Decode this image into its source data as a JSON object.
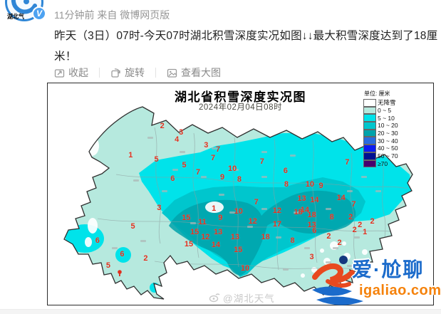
{
  "profile": {
    "avatar_text": "湖北气",
    "verified_label": "V"
  },
  "header": {
    "meta": "11分钟前 来自 微博网页版"
  },
  "post": {
    "text": "昨天（3日）07时-今天07时湖北积雪深度实况如图↓↓最大积雪深度达到了18厘米！"
  },
  "toolbar": {
    "collapse": "收起",
    "rotate": "旋转",
    "view_large": "查看大图"
  },
  "map": {
    "title": "湖北省积雪深度实况图",
    "datetime": "2024年02月04日08时",
    "unit_label": "单位: 厘米",
    "watermark": "@湖北天气",
    "value_color": "#e0301e",
    "legend": [
      {
        "label": "无降雪",
        "color": "#ffffff"
      },
      {
        "label": "0 ~ 5",
        "color": "#b6e9de"
      },
      {
        "label": "5 ~ 10",
        "color": "#00e3ea"
      },
      {
        "label": "10 ~ 20",
        "color": "#00c6cd"
      },
      {
        "label": "20 ~ 30",
        "color": "#00a2aa"
      },
      {
        "label": "30 ~ 40",
        "color": "#2a6cdf"
      },
      {
        "label": "40 ~ 50",
        "color": "#0b1bf2"
      },
      {
        "label": "50 ~ 70",
        "color": "#001090"
      },
      {
        "label": "≥70",
        "color": "#46006e"
      }
    ],
    "values": [
      {
        "v": 2,
        "x": 29.7,
        "y": 19.2
      },
      {
        "v": 3,
        "x": 34.6,
        "y": 22.1
      },
      {
        "v": 4,
        "x": 33.5,
        "y": 25.3
      },
      {
        "v": 3,
        "x": 41.1,
        "y": 27.9
      },
      {
        "v": 1,
        "x": 21.5,
        "y": 32.4
      },
      {
        "v": 5,
        "x": 28.2,
        "y": 34.3
      },
      {
        "v": 5,
        "x": 35.4,
        "y": 36.9
      },
      {
        "v": 7,
        "x": 44.2,
        "y": 29.8
      },
      {
        "v": 7,
        "x": 42.9,
        "y": 33.7
      },
      {
        "v": 7,
        "x": 39.0,
        "y": 40.1
      },
      {
        "v": 10,
        "x": 47.9,
        "y": 38.5
      },
      {
        "v": 9,
        "x": 45.3,
        "y": 42.6
      },
      {
        "v": 8,
        "x": 49.7,
        "y": 43.3
      },
      {
        "v": 7,
        "x": 55.6,
        "y": 35.3
      },
      {
        "v": 6,
        "x": 32.4,
        "y": 43.0
      },
      {
        "v": 6,
        "x": 61.7,
        "y": 39.7
      },
      {
        "v": 8,
        "x": 61.9,
        "y": 45.5
      },
      {
        "v": 10,
        "x": 68.0,
        "y": 45.5
      },
      {
        "v": 9,
        "x": 70.9,
        "y": 46.2
      },
      {
        "v": 7,
        "x": 77.7,
        "y": 35.6
      },
      {
        "v": 13,
        "x": 65.9,
        "y": 52.2
      },
      {
        "v": 14,
        "x": 69.2,
        "y": 52.6
      },
      {
        "v": 14,
        "x": 76.1,
        "y": 51.9
      },
      {
        "v": 3,
        "x": 28.9,
        "y": 56.4
      },
      {
        "v": 1,
        "x": 43.1,
        "y": 56.7
      },
      {
        "v": 7,
        "x": 54.1,
        "y": 53.8
      },
      {
        "v": 10,
        "x": 49.5,
        "y": 58.0
      },
      {
        "v": 12,
        "x": 59.5,
        "y": 57.7
      },
      {
        "v": 14,
        "x": 66.7,
        "y": 57.1
      },
      {
        "v": 18,
        "x": 65.0,
        "y": 58.3
      },
      {
        "v": 18,
        "x": 68.5,
        "y": 59.6
      },
      {
        "v": 8,
        "x": 73.7,
        "y": 60.3
      },
      {
        "v": 7,
        "x": 79.4,
        "y": 54.8
      },
      {
        "v": 2,
        "x": 78.6,
        "y": 60.3
      },
      {
        "v": 15,
        "x": 35.9,
        "y": 60.9
      },
      {
        "v": 9,
        "x": 44.8,
        "y": 60.9
      },
      {
        "v": 11,
        "x": 40.1,
        "y": 62.8
      },
      {
        "v": 12,
        "x": 53.2,
        "y": 62.5
      },
      {
        "v": 17,
        "x": 59.5,
        "y": 63.8
      },
      {
        "v": 13,
        "x": 68.5,
        "y": 64.1
      },
      {
        "v": 6,
        "x": 69.2,
        "y": 66.7
      },
      {
        "v": 2,
        "x": 81.0,
        "y": 64.1
      },
      {
        "v": 2,
        "x": 79.6,
        "y": 66.3
      },
      {
        "v": 1,
        "x": 82.3,
        "y": 67.3
      },
      {
        "v": 2,
        "x": 84.2,
        "y": 62.5
      },
      {
        "v": 15,
        "x": 38.1,
        "y": 67.3
      },
      {
        "v": 12,
        "x": 40.9,
        "y": 69.6
      },
      {
        "v": 13,
        "x": 44.2,
        "y": 67.3
      },
      {
        "v": 13,
        "x": 48.6,
        "y": 69.6
      },
      {
        "v": 18,
        "x": 56.5,
        "y": 69.6
      },
      {
        "v": 8,
        "x": 63.5,
        "y": 71.2
      },
      {
        "v": 2,
        "x": 72.9,
        "y": 69.2
      },
      {
        "v": 2,
        "x": 75.7,
        "y": 72.1
      },
      {
        "v": 15,
        "x": 36.6,
        "y": 72.8
      },
      {
        "v": 14,
        "x": 43.6,
        "y": 73.1
      },
      {
        "v": 15,
        "x": 49.4,
        "y": 75.3
      },
      {
        "v": 5,
        "x": 22.1,
        "y": 64.7
      },
      {
        "v": 6,
        "x": 12.9,
        "y": 71.2
      },
      {
        "v": 6,
        "x": 19.3,
        "y": 77.2
      },
      {
        "v": 2,
        "x": 25.4,
        "y": 79.2
      },
      {
        "v": 5,
        "x": 15.7,
        "y": 82.4
      },
      {
        "v": 3,
        "x": 68.5,
        "y": 78.5
      },
      {
        "v": 10,
        "x": 51.2,
        "y": 83.7
      }
    ]
  },
  "logo": {
    "title": "爱·尬聊",
    "site": "igaliao.com",
    "blue": "#1b6bcb",
    "orange": "#f5820b"
  }
}
